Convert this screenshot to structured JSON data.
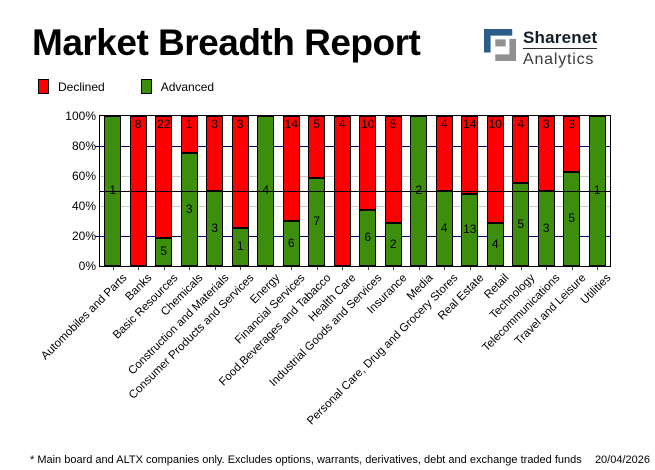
{
  "title": "Market Breadth Report",
  "logo": {
    "brand": "Sharenet",
    "sub": "Analytics",
    "icon_blue": "#2a5d8a",
    "icon_gray": "#909090"
  },
  "legend": [
    {
      "label": "Declined",
      "color": "#ff0000"
    },
    {
      "label": "Advanced",
      "color": "#3e8e0d"
    }
  ],
  "footer": {
    "note": "* Main board and ALTX companies only. Excludes options, warrants, derivatives, debt and exchange traded funds",
    "date": "20/04/2026"
  },
  "chart_data": {
    "type": "bar",
    "stacked": true,
    "normalized": "percent",
    "title": "Market Breadth Report",
    "categories": [
      "Automobiles and Parts",
      "Banks",
      "Basic Resources",
      "Chemicals",
      "Construction and Materials",
      "Consumer Products and Services",
      "Energy",
      "Financial Services",
      "Food,Beverages and Tabacco",
      "Health Care",
      "Industrial Goods and Services",
      "Insurance",
      "Media",
      "Personal Care, Drug and Grocery Stores",
      "Real Estate",
      "Retail",
      "Technology",
      "Telecommunications",
      "Travel and Leisure",
      "Utilities"
    ],
    "series": [
      {
        "name": "Declined",
        "color": "#ff0000",
        "values": [
          0,
          8,
          22,
          1,
          3,
          3,
          0,
          14,
          5,
          4,
          10,
          5,
          0,
          4,
          14,
          10,
          4,
          3,
          3,
          0
        ]
      },
      {
        "name": "Advanced",
        "color": "#3e8e0d",
        "values": [
          1,
          0,
          5,
          3,
          3,
          1,
          4,
          6,
          7,
          0,
          6,
          2,
          2,
          4,
          13,
          4,
          5,
          3,
          5,
          1
        ]
      }
    ],
    "yticks": [
      "0%",
      "20%",
      "40%",
      "60%",
      "80%",
      "100%"
    ],
    "ylim": [
      0,
      100
    ],
    "grid": {
      "navy_lines": [
        20,
        80
      ],
      "gray_lines": [
        40,
        60
      ],
      "mid_line": 50,
      "navy_color": "#000080",
      "gray_color": "#c9c9c9",
      "mid_color": "#000000"
    },
    "legend_position": "top-left",
    "value_labels": "shown: Declined at top of bar, Advanced at centre of green segment"
  }
}
